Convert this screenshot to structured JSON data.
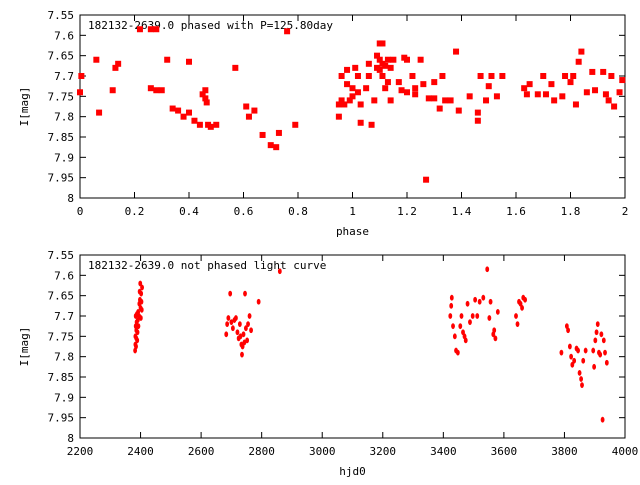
{
  "chart_data": [
    {
      "type": "scatter",
      "title": "182132-2639.0 phased with P=125.80day",
      "xlabel": "phase",
      "ylabel": "I[mag]",
      "xlim": [
        0,
        2
      ],
      "ylim": [
        7.55,
        8.0
      ],
      "y_reversed": true,
      "xticks": [
        "0",
        "0.2",
        "0.4",
        "0.6",
        "0.8",
        "1",
        "1.2",
        "1.4",
        "1.6",
        "1.8",
        "2"
      ],
      "yticks": [
        "7.55",
        "7.6",
        "7.65",
        "7.7",
        "7.75",
        "7.8",
        "7.85",
        "7.9",
        "7.95",
        "8"
      ],
      "marker_color": "#ff0000",
      "points": [
        [
          0.0,
          7.74
        ],
        [
          0.005,
          7.7
        ],
        [
          0.06,
          7.66
        ],
        [
          0.07,
          7.79
        ],
        [
          0.12,
          7.735
        ],
        [
          0.13,
          7.68
        ],
        [
          0.14,
          7.67
        ],
        [
          0.22,
          7.585
        ],
        [
          0.26,
          7.585
        ],
        [
          0.28,
          7.585
        ],
        [
          0.26,
          7.73
        ],
        [
          0.28,
          7.735
        ],
        [
          0.3,
          7.735
        ],
        [
          0.32,
          7.66
        ],
        [
          0.34,
          7.78
        ],
        [
          0.36,
          7.785
        ],
        [
          0.38,
          7.8
        ],
        [
          0.4,
          7.665
        ],
        [
          0.4,
          7.79
        ],
        [
          0.42,
          7.81
        ],
        [
          0.44,
          7.82
        ],
        [
          0.45,
          7.745
        ],
        [
          0.46,
          7.755
        ],
        [
          0.46,
          7.735
        ],
        [
          0.465,
          7.765
        ],
        [
          0.47,
          7.82
        ],
        [
          0.48,
          7.825
        ],
        [
          0.5,
          7.82
        ],
        [
          0.57,
          7.68
        ],
        [
          0.61,
          7.775
        ],
        [
          0.62,
          7.8
        ],
        [
          0.64,
          7.785
        ],
        [
          0.67,
          7.845
        ],
        [
          0.7,
          7.87
        ],
        [
          0.72,
          7.875
        ],
        [
          0.73,
          7.84
        ],
        [
          0.76,
          7.59
        ],
        [
          0.79,
          7.82
        ],
        [
          0.95,
          7.77
        ],
        [
          0.95,
          7.8
        ],
        [
          0.96,
          7.7
        ],
        [
          0.96,
          7.76
        ],
        [
          0.97,
          7.77
        ],
        [
          0.98,
          7.72
        ],
        [
          0.98,
          7.685
        ],
        [
          0.99,
          7.76
        ],
        [
          1.0,
          7.75
        ],
        [
          1.0,
          7.73
        ],
        [
          1.01,
          7.68
        ],
        [
          1.02,
          7.74
        ],
        [
          1.02,
          7.7
        ],
        [
          1.03,
          7.77
        ],
        [
          1.03,
          7.815
        ],
        [
          1.05,
          7.73
        ],
        [
          1.06,
          7.7
        ],
        [
          1.06,
          7.67
        ],
        [
          1.07,
          7.82
        ],
        [
          1.08,
          7.76
        ],
        [
          1.09,
          7.68
        ],
        [
          1.09,
          7.65
        ],
        [
          1.1,
          7.62
        ],
        [
          1.1,
          7.66
        ],
        [
          1.1,
          7.685
        ],
        [
          1.11,
          7.62
        ],
        [
          1.11,
          7.67
        ],
        [
          1.11,
          7.7
        ],
        [
          1.12,
          7.73
        ],
        [
          1.12,
          7.675
        ],
        [
          1.13,
          7.66
        ],
        [
          1.13,
          7.715
        ],
        [
          1.14,
          7.68
        ],
        [
          1.14,
          7.76
        ],
        [
          1.15,
          7.66
        ],
        [
          1.17,
          7.715
        ],
        [
          1.18,
          7.735
        ],
        [
          1.19,
          7.655
        ],
        [
          1.2,
          7.66
        ],
        [
          1.2,
          7.74
        ],
        [
          1.22,
          7.7
        ],
        [
          1.23,
          7.745
        ],
        [
          1.23,
          7.73
        ],
        [
          1.25,
          7.66
        ],
        [
          1.26,
          7.72
        ],
        [
          1.27,
          7.955
        ],
        [
          1.28,
          7.755
        ],
        [
          1.3,
          7.755
        ],
        [
          1.3,
          7.715
        ],
        [
          1.32,
          7.78
        ],
        [
          1.33,
          7.7
        ],
        [
          1.34,
          7.76
        ],
        [
          1.36,
          7.76
        ],
        [
          1.38,
          7.64
        ],
        [
          1.39,
          7.785
        ],
        [
          1.43,
          7.75
        ],
        [
          1.46,
          7.81
        ],
        [
          1.46,
          7.79
        ],
        [
          1.47,
          7.7
        ],
        [
          1.49,
          7.76
        ],
        [
          1.5,
          7.725
        ],
        [
          1.51,
          7.7
        ],
        [
          1.53,
          7.75
        ],
        [
          1.55,
          7.7
        ],
        [
          1.63,
          7.73
        ],
        [
          1.64,
          7.745
        ],
        [
          1.65,
          7.72
        ],
        [
          1.68,
          7.745
        ],
        [
          1.7,
          7.7
        ],
        [
          1.71,
          7.745
        ],
        [
          1.73,
          7.72
        ],
        [
          1.74,
          7.76
        ],
        [
          1.77,
          7.75
        ],
        [
          1.78,
          7.7
        ],
        [
          1.8,
          7.715
        ],
        [
          1.81,
          7.7
        ],
        [
          1.82,
          7.77
        ],
        [
          1.83,
          7.665
        ],
        [
          1.84,
          7.64
        ],
        [
          1.86,
          7.74
        ],
        [
          1.88,
          7.69
        ],
        [
          1.89,
          7.735
        ],
        [
          1.92,
          7.69
        ],
        [
          1.93,
          7.745
        ],
        [
          1.94,
          7.76
        ],
        [
          1.95,
          7.7
        ],
        [
          1.96,
          7.775
        ],
        [
          1.98,
          7.74
        ],
        [
          1.99,
          7.71
        ]
      ]
    },
    {
      "type": "scatter",
      "title": "182132-2639.0 not phased light curve",
      "xlabel": "hjd0",
      "ylabel": "I[mag]",
      "xlim": [
        2200,
        4000
      ],
      "ylim": [
        7.55,
        8.0
      ],
      "y_reversed": true,
      "xticks": [
        "2200",
        "2400",
        "2600",
        "2800",
        "3000",
        "3200",
        "3400",
        "3600",
        "3800",
        "4000"
      ],
      "yticks": [
        "7.55",
        "7.6",
        "7.65",
        "7.7",
        "7.75",
        "7.8",
        "7.85",
        "7.9",
        "7.95",
        "8"
      ],
      "marker_color": "#ff0000",
      "points": [
        [
          2382,
          7.785
        ],
        [
          2383,
          7.77
        ],
        [
          2383,
          7.75
        ],
        [
          2384,
          7.725
        ],
        [
          2384,
          7.7
        ],
        [
          2385,
          7.775
        ],
        [
          2386,
          7.755
        ],
        [
          2386,
          7.735
        ],
        [
          2387,
          7.715
        ],
        [
          2388,
          7.695
        ],
        [
          2389,
          7.76
        ],
        [
          2390,
          7.74
        ],
        [
          2391,
          7.71
        ],
        [
          2392,
          7.69
        ],
        [
          2393,
          7.725
        ],
        [
          2395,
          7.7
        ],
        [
          2396,
          7.67
        ],
        [
          2397,
          7.64
        ],
        [
          2398,
          7.66
        ],
        [
          2399,
          7.62
        ],
        [
          2400,
          7.68
        ],
        [
          2401,
          7.705
        ],
        [
          2402,
          7.645
        ],
        [
          2403,
          7.665
        ],
        [
          2404,
          7.685
        ],
        [
          2405,
          7.63
        ],
        [
          2683,
          7.745
        ],
        [
          2686,
          7.72
        ],
        [
          2690,
          7.705
        ],
        [
          2696,
          7.645
        ],
        [
          2700,
          7.715
        ],
        [
          2705,
          7.73
        ],
        [
          2710,
          7.71
        ],
        [
          2715,
          7.705
        ],
        [
          2720,
          7.74
        ],
        [
          2724,
          7.755
        ],
        [
          2728,
          7.72
        ],
        [
          2730,
          7.75
        ],
        [
          2733,
          7.77
        ],
        [
          2735,
          7.795
        ],
        [
          2737,
          7.775
        ],
        [
          2740,
          7.745
        ],
        [
          2743,
          7.765
        ],
        [
          2745,
          7.645
        ],
        [
          2748,
          7.73
        ],
        [
          2752,
          7.76
        ],
        [
          2755,
          7.72
        ],
        [
          2760,
          7.7
        ],
        [
          2765,
          7.735
        ],
        [
          2790,
          7.665
        ],
        [
          2860,
          7.59
        ],
        [
          3423,
          7.7
        ],
        [
          3426,
          7.675
        ],
        [
          3428,
          7.655
        ],
        [
          3432,
          7.725
        ],
        [
          3438,
          7.75
        ],
        [
          3442,
          7.785
        ],
        [
          3448,
          7.79
        ],
        [
          3456,
          7.725
        ],
        [
          3460,
          7.7
        ],
        [
          3465,
          7.74
        ],
        [
          3470,
          7.75
        ],
        [
          3474,
          7.76
        ],
        [
          3480,
          7.67
        ],
        [
          3488,
          7.715
        ],
        [
          3497,
          7.7
        ],
        [
          3505,
          7.66
        ],
        [
          3512,
          7.7
        ],
        [
          3520,
          7.665
        ],
        [
          3532,
          7.655
        ],
        [
          3545,
          7.585
        ],
        [
          3552,
          7.705
        ],
        [
          3556,
          7.665
        ],
        [
          3565,
          7.745
        ],
        [
          3568,
          7.735
        ],
        [
          3572,
          7.755
        ],
        [
          3580,
          7.69
        ],
        [
          3640,
          7.7
        ],
        [
          3645,
          7.72
        ],
        [
          3650,
          7.665
        ],
        [
          3655,
          7.67
        ],
        [
          3660,
          7.68
        ],
        [
          3664,
          7.655
        ],
        [
          3670,
          7.66
        ],
        [
          3790,
          7.79
        ],
        [
          3808,
          7.725
        ],
        [
          3812,
          7.735
        ],
        [
          3818,
          7.775
        ],
        [
          3822,
          7.8
        ],
        [
          3826,
          7.82
        ],
        [
          3832,
          7.81
        ],
        [
          3840,
          7.78
        ],
        [
          3845,
          7.785
        ],
        [
          3850,
          7.84
        ],
        [
          3855,
          7.855
        ],
        [
          3858,
          7.87
        ],
        [
          3862,
          7.81
        ],
        [
          3870,
          7.785
        ],
        [
          3895,
          7.785
        ],
        [
          3898,
          7.825
        ],
        [
          3902,
          7.76
        ],
        [
          3906,
          7.74
        ],
        [
          3910,
          7.72
        ],
        [
          3914,
          7.79
        ],
        [
          3918,
          7.795
        ],
        [
          3922,
          7.745
        ],
        [
          3926,
          7.955
        ],
        [
          3930,
          7.76
        ],
        [
          3934,
          7.79
        ],
        [
          3940,
          7.815
        ]
      ]
    }
  ]
}
